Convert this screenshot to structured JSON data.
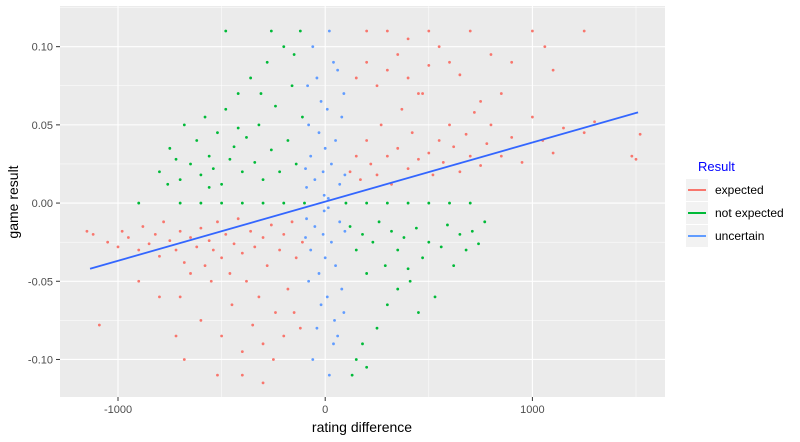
{
  "chart_data": {
    "type": "scatter",
    "xlabel": "rating difference",
    "ylabel": "game result",
    "xlim": [
      -1280,
      1640
    ],
    "ylim": [
      -0.124,
      0.126
    ],
    "x_ticks": [
      -1000,
      0,
      1000
    ],
    "x_tick_labels": [
      "-1000",
      "0",
      "1000"
    ],
    "y_ticks": [
      -0.1,
      -0.05,
      0.0,
      0.05,
      0.1
    ],
    "y_tick_labels": [
      "-0.10",
      "-0.05",
      "0.00",
      "0.05",
      "0.10"
    ],
    "grid": true,
    "legend": {
      "title": "Result",
      "title_color": "#0000ff",
      "placement": "right",
      "entries": [
        {
          "label": "expected",
          "color": "#f8766d"
        },
        {
          "label": "not expected",
          "color": "#00ba38"
        },
        {
          "label": "uncertain",
          "color": "#619cff"
        }
      ]
    },
    "series": [
      {
        "name": "expected",
        "color": "#f8766d",
        "points": [
          [
            -1120,
            -0.02
          ],
          [
            -1050,
            -0.025
          ],
          [
            -980,
            -0.018
          ],
          [
            -1000,
            -0.028
          ],
          [
            -950,
            -0.022
          ],
          [
            -900,
            -0.03
          ],
          [
            -880,
            -0.015
          ],
          [
            -850,
            -0.026
          ],
          [
            -820,
            -0.02
          ],
          [
            -800,
            -0.034
          ],
          [
            -780,
            -0.012
          ],
          [
            -750,
            -0.024
          ],
          [
            -720,
            -0.03
          ],
          [
            -700,
            -0.018
          ],
          [
            -680,
            -0.038
          ],
          [
            -650,
            -0.022
          ],
          [
            -620,
            -0.028
          ],
          [
            -600,
            -0.016
          ],
          [
            -580,
            -0.04
          ],
          [
            -560,
            -0.024
          ],
          [
            -540,
            -0.03
          ],
          [
            -520,
            -0.012
          ],
          [
            -500,
            -0.035
          ],
          [
            -480,
            -0.02
          ],
          [
            -460,
            -0.045
          ],
          [
            -440,
            -0.026
          ],
          [
            -420,
            -0.01
          ],
          [
            -400,
            -0.032
          ],
          [
            -380,
            -0.05
          ],
          [
            -360,
            -0.018
          ],
          [
            -340,
            -0.028
          ],
          [
            -320,
            -0.06
          ],
          [
            -300,
            -0.022
          ],
          [
            -280,
            -0.04
          ],
          [
            -260,
            -0.014
          ],
          [
            -240,
            -0.07
          ],
          [
            -220,
            -0.03
          ],
          [
            -200,
            -0.02
          ],
          [
            -180,
            -0.055
          ],
          [
            -160,
            -0.012
          ],
          [
            -140,
            -0.035
          ],
          [
            -120,
            -0.08
          ],
          [
            -110,
            -0.025
          ],
          [
            -700,
            -0.06
          ],
          [
            -600,
            -0.075
          ],
          [
            -500,
            -0.085
          ],
          [
            -450,
            -0.065
          ],
          [
            -400,
            -0.095
          ],
          [
            -350,
            -0.078
          ],
          [
            -300,
            -0.09
          ],
          [
            -250,
            -0.1
          ],
          [
            -200,
            -0.085
          ],
          [
            -150,
            -0.07
          ],
          [
            -550,
            -0.05
          ],
          [
            -650,
            -0.045
          ],
          [
            -1150,
            -0.018
          ],
          [
            -1090,
            -0.078
          ],
          [
            -900,
            -0.05
          ],
          [
            -800,
            -0.06
          ],
          [
            -720,
            -0.085
          ],
          [
            -680,
            -0.1
          ],
          [
            -520,
            -0.11
          ],
          [
            -400,
            -0.11
          ],
          [
            -300,
            -0.115
          ],
          [
            120,
            0.02
          ],
          [
            150,
            0.03
          ],
          [
            170,
            0.015
          ],
          [
            200,
            0.04
          ],
          [
            220,
            0.025
          ],
          [
            250,
            0.018
          ],
          [
            270,
            0.05
          ],
          [
            300,
            0.03
          ],
          [
            320,
            0.012
          ],
          [
            350,
            0.035
          ],
          [
            370,
            0.06
          ],
          [
            400,
            0.022
          ],
          [
            420,
            0.045
          ],
          [
            450,
            0.028
          ],
          [
            470,
            0.07
          ],
          [
            500,
            0.032
          ],
          [
            520,
            0.018
          ],
          [
            550,
            0.04
          ],
          [
            570,
            0.026
          ],
          [
            600,
            0.05
          ],
          [
            620,
            0.036
          ],
          [
            650,
            0.02
          ],
          [
            680,
            0.044
          ],
          [
            700,
            0.03
          ],
          [
            720,
            0.058
          ],
          [
            750,
            0.024
          ],
          [
            780,
            0.038
          ],
          [
            800,
            0.05
          ],
          [
            850,
            0.03
          ],
          [
            900,
            0.042
          ],
          [
            950,
            0.026
          ],
          [
            1000,
            0.055
          ],
          [
            1050,
            0.04
          ],
          [
            1100,
            0.032
          ],
          [
            1150,
            0.048
          ],
          [
            1250,
            0.045
          ],
          [
            1300,
            0.052
          ],
          [
            1480,
            0.03
          ],
          [
            1500,
            0.028
          ],
          [
            1520,
            0.044
          ],
          [
            150,
            0.08
          ],
          [
            200,
            0.09
          ],
          [
            250,
            0.075
          ],
          [
            300,
            0.085
          ],
          [
            350,
            0.095
          ],
          [
            400,
            0.08
          ],
          [
            450,
            0.07
          ],
          [
            500,
            0.088
          ],
          [
            550,
            0.1
          ],
          [
            600,
            0.09
          ],
          [
            650,
            0.082
          ],
          [
            200,
            0.11
          ],
          [
            300,
            0.11
          ],
          [
            400,
            0.105
          ],
          [
            500,
            0.11
          ],
          [
            700,
            0.11
          ],
          [
            800,
            0.095
          ],
          [
            900,
            0.09
          ],
          [
            1000,
            0.11
          ],
          [
            1100,
            0.085
          ],
          [
            1250,
            0.11
          ],
          [
            1060,
            0.1
          ],
          [
            850,
            0.07
          ],
          [
            750,
            0.065
          ]
        ]
      },
      {
        "name": "not expected",
        "color": "#00ba38",
        "points": [
          [
            -800,
            0.02
          ],
          [
            -750,
            0.035
          ],
          [
            -700,
            0.015
          ],
          [
            -680,
            0.05
          ],
          [
            -650,
            0.025
          ],
          [
            -620,
            0.04
          ],
          [
            -600,
            0.018
          ],
          [
            -580,
            0.055
          ],
          [
            -560,
            0.03
          ],
          [
            -540,
            0.022
          ],
          [
            -520,
            0.045
          ],
          [
            -500,
            0.012
          ],
          [
            -480,
            0.06
          ],
          [
            -460,
            0.028
          ],
          [
            -440,
            0.036
          ],
          [
            -420,
            0.07
          ],
          [
            -400,
            0.02
          ],
          [
            -380,
            0.042
          ],
          [
            -360,
            0.08
          ],
          [
            -340,
            0.026
          ],
          [
            -320,
            0.05
          ],
          [
            -300,
            0.015
          ],
          [
            -280,
            0.09
          ],
          [
            -260,
            0.034
          ],
          [
            -240,
            0.062
          ],
          [
            -220,
            0.02
          ],
          [
            -200,
            0.1
          ],
          [
            -180,
            0.04
          ],
          [
            -160,
            0.075
          ],
          [
            -140,
            0.025
          ],
          [
            -120,
            0.11
          ],
          [
            -110,
            0.055
          ],
          [
            -760,
            0.012
          ],
          [
            -720,
            0.028
          ],
          [
            -560,
            0.01
          ],
          [
            -480,
            0.11
          ],
          [
            -260,
            0.11
          ],
          [
            -150,
            0.095
          ],
          [
            -310,
            0.07
          ],
          [
            -420,
            0.048
          ],
          [
            -900,
            0.0
          ],
          [
            -700,
            0.0
          ],
          [
            -500,
            0.0
          ],
          [
            -300,
            0.0
          ],
          [
            -200,
            0.0
          ],
          [
            -100,
            0.0
          ],
          [
            100,
            0.0
          ],
          [
            200,
            0.0
          ],
          [
            300,
            0.0
          ],
          [
            400,
            0.0
          ],
          [
            500,
            0.0
          ],
          [
            600,
            0.0
          ],
          [
            -600,
            0.0
          ],
          [
            -400,
            0.0
          ],
          [
            700,
            0.0
          ],
          [
            120,
            -0.015
          ],
          [
            150,
            -0.03
          ],
          [
            180,
            -0.02
          ],
          [
            200,
            -0.045
          ],
          [
            230,
            -0.025
          ],
          [
            260,
            -0.012
          ],
          [
            290,
            -0.04
          ],
          [
            320,
            -0.018
          ],
          [
            350,
            -0.03
          ],
          [
            380,
            -0.022
          ],
          [
            410,
            -0.05
          ],
          [
            440,
            -0.016
          ],
          [
            470,
            -0.035
          ],
          [
            500,
            -0.025
          ],
          [
            530,
            -0.06
          ],
          [
            560,
            -0.028
          ],
          [
            590,
            -0.014
          ],
          [
            620,
            -0.04
          ],
          [
            650,
            -0.02
          ],
          [
            680,
            -0.03
          ],
          [
            710,
            -0.018
          ],
          [
            740,
            -0.026
          ],
          [
            770,
            -0.012
          ],
          [
            450,
            -0.07
          ],
          [
            300,
            -0.065
          ],
          [
            250,
            -0.08
          ],
          [
            180,
            -0.09
          ],
          [
            150,
            -0.1
          ],
          [
            130,
            -0.11
          ],
          [
            200,
            -0.105
          ],
          [
            350,
            -0.055
          ],
          [
            400,
            -0.042
          ]
        ]
      },
      {
        "name": "uncertain",
        "color": "#619cff",
        "points": [
          [
            -90,
            0.01
          ],
          [
            -70,
            0.03
          ],
          [
            -50,
            0.015
          ],
          [
            -30,
            0.045
          ],
          [
            -10,
            0.02
          ],
          [
            10,
            0.06
          ],
          [
            30,
            0.025
          ],
          [
            50,
            0.04
          ],
          [
            70,
            0.012
          ],
          [
            90,
            0.07
          ],
          [
            -80,
            0.05
          ],
          [
            -40,
            0.08
          ],
          [
            0,
            0.035
          ],
          [
            40,
            0.09
          ],
          [
            80,
            0.055
          ],
          [
            -60,
            0.1
          ],
          [
            20,
            0.11
          ],
          [
            60,
            0.085
          ],
          [
            -20,
            0.065
          ],
          [
            -95,
            0.022
          ],
          [
            95,
            0.018
          ],
          [
            -5,
            0.005
          ],
          [
            15,
            0.003
          ],
          [
            -85,
            0.075
          ],
          [
            -90,
            -0.01
          ],
          [
            -70,
            -0.03
          ],
          [
            -50,
            -0.015
          ],
          [
            -30,
            -0.045
          ],
          [
            -10,
            -0.02
          ],
          [
            10,
            -0.06
          ],
          [
            30,
            -0.025
          ],
          [
            50,
            -0.04
          ],
          [
            70,
            -0.012
          ],
          [
            90,
            -0.07
          ],
          [
            -80,
            -0.05
          ],
          [
            -40,
            -0.08
          ],
          [
            0,
            -0.035
          ],
          [
            40,
            -0.09
          ],
          [
            80,
            -0.055
          ],
          [
            -60,
            -0.1
          ],
          [
            20,
            -0.11
          ],
          [
            60,
            -0.085
          ],
          [
            -20,
            -0.065
          ],
          [
            -95,
            -0.022
          ],
          [
            95,
            -0.018
          ],
          [
            -5,
            -0.005
          ],
          [
            15,
            -0.003
          ],
          [
            45,
            -0.075
          ]
        ]
      }
    ],
    "fit_line": {
      "color": "#3366ff",
      "x": [
        -1135,
        1510
      ],
      "y": [
        -0.042,
        0.058
      ]
    }
  }
}
